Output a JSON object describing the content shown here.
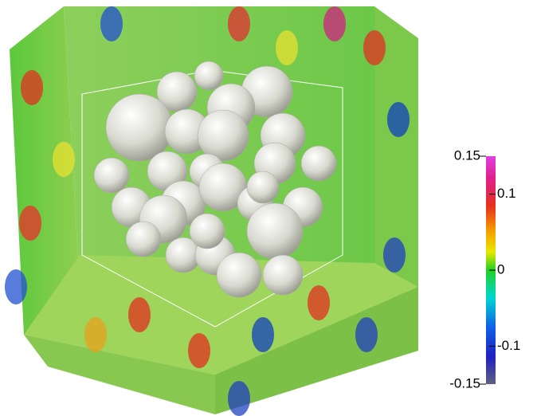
{
  "colorbar": {
    "range": [
      -0.15,
      0.15
    ],
    "ticks": [
      0.1,
      0,
      -0.1
    ]
  }
}
